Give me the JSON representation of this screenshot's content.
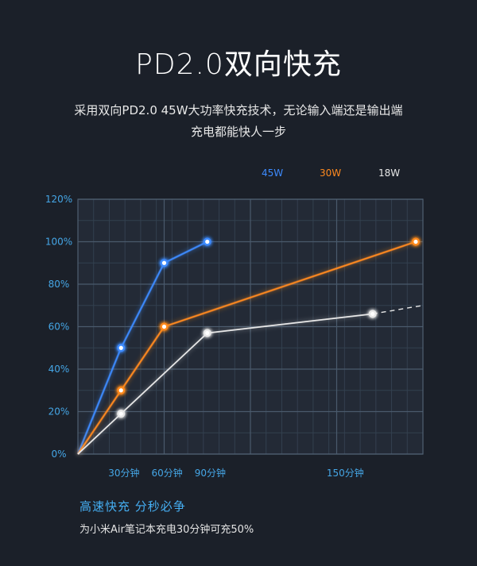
{
  "page": {
    "title": "PD2.0双向快充",
    "subtitle_lines": [
      "采用双向PD2.0  45W大功率快充技术，无论输入端还是输出端",
      "充电都能快人一步"
    ],
    "tagline": "高速快充 分秒必争",
    "note": "为小米Air笔记本充电30分钟可充50%"
  },
  "chart_data": {
    "type": "line",
    "title": "",
    "xlabel": "",
    "ylabel": "",
    "x_tick_labels": [
      "30分钟",
      "60分钟",
      "90分钟",
      "150分钟"
    ],
    "y_tick_labels": [
      "0%",
      "20%",
      "40%",
      "60%",
      "80%",
      "100%",
      "120%"
    ],
    "xlim": [
      0,
      240
    ],
    "ylim": [
      0,
      120
    ],
    "grid": true,
    "legend_position": "top-right",
    "series": [
      {
        "name": "45W",
        "color": "#3d8bff",
        "x": [
          0,
          30,
          60,
          90
        ],
        "y": [
          0,
          50,
          90,
          100
        ]
      },
      {
        "name": "30W",
        "color": "#ff8a1f",
        "x": [
          0,
          30,
          60,
          235
        ],
        "y": [
          0,
          30,
          60,
          100
        ]
      },
      {
        "name": "18W",
        "color": "#e8e8e8",
        "x": [
          0,
          30,
          90,
          205,
          240
        ],
        "y": [
          0,
          19,
          57,
          66,
          70
        ],
        "dashed_from_index": 3
      }
    ]
  }
}
